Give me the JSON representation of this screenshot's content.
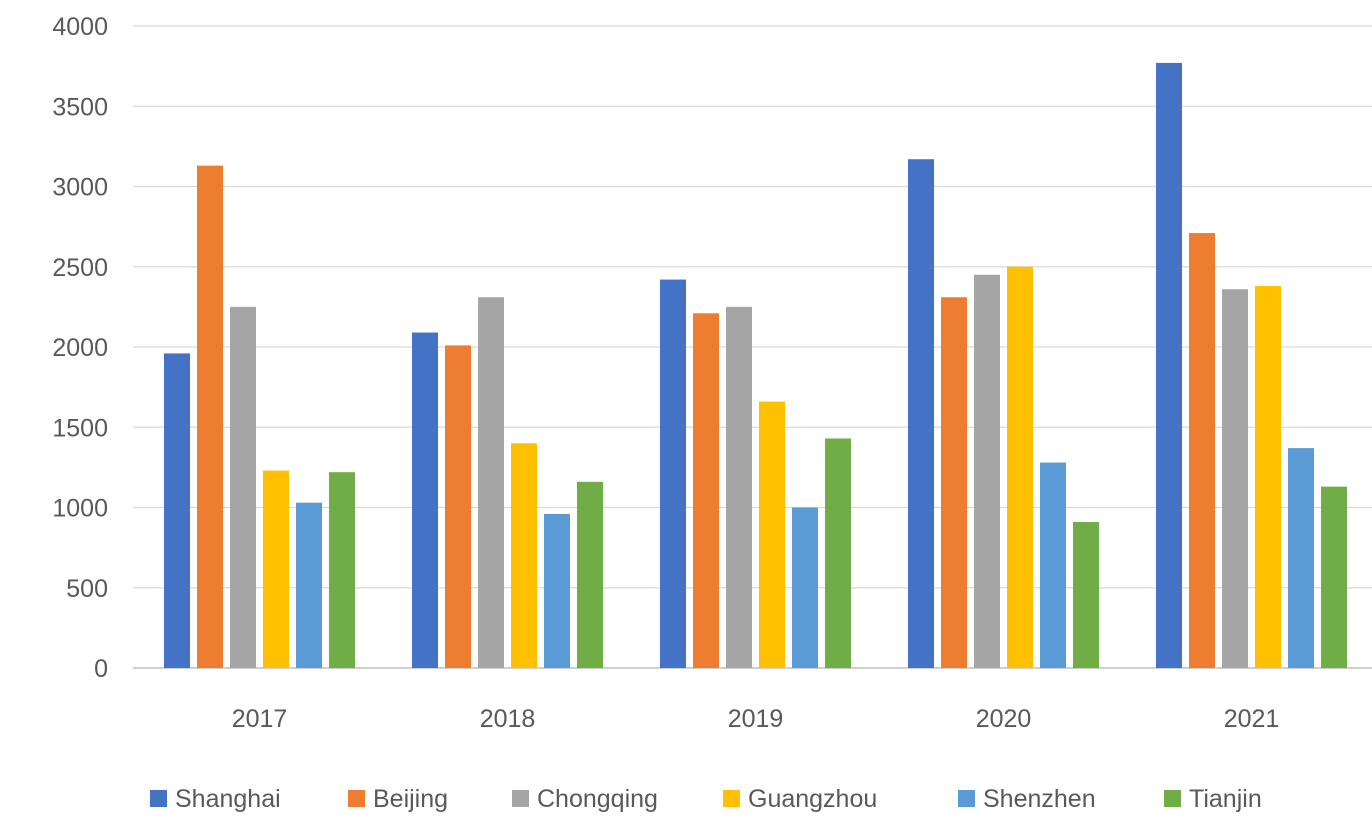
{
  "chart_data": {
    "type": "bar",
    "title": "",
    "xlabel": "",
    "ylabel": "",
    "categories": [
      "2017",
      "2018",
      "2019",
      "2020",
      "2021"
    ],
    "ylim": [
      0,
      4000
    ],
    "yticks": [
      0,
      500,
      1000,
      1500,
      2000,
      2500,
      3000,
      3500,
      4000
    ],
    "grid": true,
    "legend_position": "bottom",
    "series": [
      {
        "name": "Shanghai",
        "color": "#4472C4",
        "values": [
          1960,
          2090,
          2420,
          3170,
          3770
        ]
      },
      {
        "name": "Beijing",
        "color": "#ED7D31",
        "values": [
          3130,
          2010,
          2210,
          2310,
          2710
        ]
      },
      {
        "name": "Chongqing",
        "color": "#A5A5A5",
        "values": [
          2250,
          2310,
          2250,
          2450,
          2360
        ]
      },
      {
        "name": "Guangzhou",
        "color": "#FFC000",
        "values": [
          1230,
          1400,
          1660,
          2500,
          2380
        ]
      },
      {
        "name": "Shenzhen",
        "color": "#5B9BD5",
        "values": [
          1030,
          960,
          1000,
          1280,
          1370
        ]
      },
      {
        "name": "Tianjin",
        "color": "#70AD47",
        "values": [
          1220,
          1160,
          1430,
          910,
          1130
        ]
      }
    ]
  }
}
